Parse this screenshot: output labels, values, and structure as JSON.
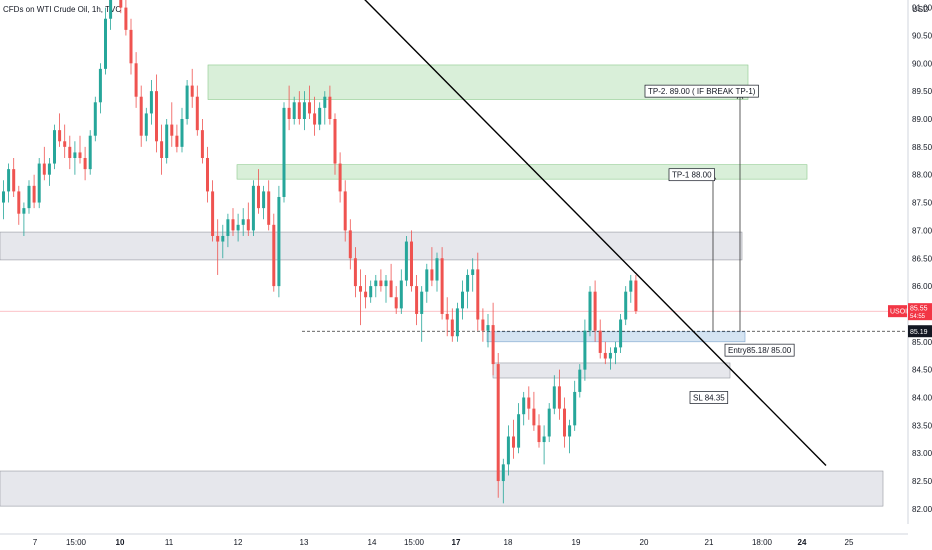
{
  "header": {
    "symbol_title": "CFDs on WTI Crude Oil, 1h, TVC"
  },
  "price_axis": {
    "currency": "USD"
  },
  "colors": {
    "up": "#26a69a",
    "down": "#ef5350",
    "last_price": "#f23645",
    "zone_green": "#b9e2b9",
    "zone_gray": "#d1d4dc",
    "zone_blue": "#b3cde8"
  },
  "chart_data": {
    "type": "candlestick",
    "title": "CFDs on WTI Crude Oil, 1h, TVC",
    "y_axis": {
      "currency": "USD",
      "range": [
        81.65,
        91.75
      ],
      "ticks": [
        82.0,
        82.5,
        83.0,
        83.5,
        84.0,
        84.5,
        85.0,
        85.5,
        86.0,
        86.5,
        87.0,
        87.5,
        88.0,
        88.5,
        89.0,
        89.5,
        90.0,
        90.5,
        91.0
      ]
    },
    "x_axis": {
      "ticks": [
        {
          "label": "7",
          "bold": false
        },
        {
          "label": "15:00",
          "bold": false
        },
        {
          "label": "10",
          "bold": true
        },
        {
          "label": "11",
          "bold": false
        },
        {
          "label": "12",
          "bold": false
        },
        {
          "label": "13",
          "bold": false
        },
        {
          "label": "14",
          "bold": false
        },
        {
          "label": "15:00",
          "bold": false
        },
        {
          "label": "17",
          "bold": true
        },
        {
          "label": "18",
          "bold": false
        },
        {
          "label": "19",
          "bold": false
        },
        {
          "label": "20",
          "bold": false
        },
        {
          "label": "21",
          "bold": false
        },
        {
          "label": "18:00",
          "bold": false
        },
        {
          "label": "24",
          "bold": true
        },
        {
          "label": "25",
          "bold": false
        }
      ]
    },
    "price_labels": [
      {
        "symbol": "USOIL",
        "price": "85.55",
        "countdown": "54:55"
      },
      {
        "price": "85.19"
      }
    ],
    "last_price": 85.55,
    "entry_line": 85.19,
    "zones": [
      {
        "kind": "target",
        "low": 89.35,
        "high": 89.97,
        "label": "TP-2.   89.00 ( IF BREAK TP-1)"
      },
      {
        "kind": "target",
        "low": 87.92,
        "high": 88.18,
        "label": "TP-1 88.00"
      },
      {
        "kind": "resistance",
        "low": 86.47,
        "high": 86.97
      },
      {
        "kind": "entry",
        "low": 85.0,
        "high": 85.18,
        "label": "Entry85.18/ 85.00"
      },
      {
        "kind": "stop",
        "low": 84.35,
        "high": 84.62,
        "label": "SL 84.35"
      },
      {
        "kind": "support",
        "low": 82.05,
        "high": 82.68
      }
    ],
    "trendline": {
      "from_price": 92.1,
      "to_price": 82.78
    },
    "candles": [
      [
        87.5,
        87.9,
        87.2,
        87.7
      ],
      [
        87.7,
        88.2,
        87.5,
        88.1
      ],
      [
        88.1,
        88.3,
        87.6,
        87.7
      ],
      [
        87.7,
        87.8,
        87.1,
        87.3
      ],
      [
        87.3,
        87.5,
        86.9,
        87.4
      ],
      [
        87.4,
        87.9,
        87.3,
        87.8
      ],
      [
        87.8,
        88.0,
        87.4,
        87.5
      ],
      [
        87.5,
        88.3,
        87.4,
        88.2
      ],
      [
        88.2,
        88.5,
        87.9,
        88.0
      ],
      [
        88.0,
        88.3,
        87.8,
        88.2
      ],
      [
        88.2,
        88.9,
        88.1,
        88.8
      ],
      [
        88.8,
        89.1,
        88.5,
        88.6
      ],
      [
        88.6,
        88.9,
        88.3,
        88.5
      ],
      [
        88.5,
        88.7,
        88.1,
        88.3
      ],
      [
        88.3,
        88.6,
        88.0,
        88.4
      ],
      [
        88.4,
        88.7,
        88.2,
        88.3
      ],
      [
        88.3,
        88.5,
        87.9,
        88.1
      ],
      [
        88.1,
        88.8,
        88.0,
        88.7
      ],
      [
        88.7,
        89.4,
        88.6,
        89.3
      ],
      [
        89.3,
        90.0,
        89.1,
        89.9
      ],
      [
        89.9,
        91.0,
        89.8,
        90.8
      ],
      [
        90.8,
        92.0,
        90.6,
        91.8
      ],
      [
        91.9,
        92.2,
        91.3,
        91.5
      ],
      [
        91.5,
        91.7,
        90.9,
        91.0
      ],
      [
        91.0,
        91.3,
        90.5,
        90.6
      ],
      [
        90.6,
        90.8,
        89.8,
        90.0
      ],
      [
        90.0,
        90.2,
        89.2,
        89.4
      ],
      [
        89.4,
        89.6,
        88.5,
        88.7
      ],
      [
        88.7,
        89.2,
        88.6,
        89.1
      ],
      [
        89.1,
        89.7,
        88.9,
        89.5
      ],
      [
        89.5,
        89.8,
        88.4,
        88.6
      ],
      [
        88.6,
        88.9,
        88.0,
        88.3
      ],
      [
        88.3,
        89.0,
        88.2,
        88.9
      ],
      [
        88.9,
        89.3,
        88.5,
        88.7
      ],
      [
        88.7,
        88.9,
        88.4,
        88.5
      ],
      [
        88.5,
        89.2,
        88.4,
        89.0
      ],
      [
        89.0,
        89.7,
        88.9,
        89.6
      ],
      [
        89.6,
        89.9,
        89.2,
        89.4
      ],
      [
        89.4,
        89.6,
        88.7,
        88.8
      ],
      [
        88.8,
        89.0,
        88.2,
        88.3
      ],
      [
        88.3,
        88.5,
        87.5,
        87.7
      ],
      [
        87.7,
        87.9,
        86.8,
        86.9
      ],
      [
        86.9,
        87.2,
        86.2,
        86.8
      ],
      [
        86.8,
        87.1,
        86.5,
        86.9
      ],
      [
        86.9,
        87.3,
        86.7,
        87.2
      ],
      [
        87.2,
        87.4,
        86.9,
        87.0
      ],
      [
        87.0,
        87.3,
        86.8,
        87.1
      ],
      [
        87.1,
        87.4,
        86.9,
        87.2
      ],
      [
        87.2,
        87.5,
        86.9,
        87.0
      ],
      [
        87.0,
        87.9,
        86.9,
        87.8
      ],
      [
        87.8,
        88.1,
        87.3,
        87.4
      ],
      [
        87.4,
        87.8,
        87.2,
        87.7
      ],
      [
        87.7,
        87.9,
        87.0,
        87.1
      ],
      [
        87.1,
        87.3,
        85.9,
        86.0
      ],
      [
        86.0,
        87.8,
        85.8,
        87.6
      ],
      [
        87.6,
        89.3,
        87.5,
        89.2
      ],
      [
        89.2,
        89.6,
        88.8,
        89.0
      ],
      [
        89.0,
        89.4,
        88.9,
        89.3
      ],
      [
        89.3,
        89.5,
        88.9,
        89.0
      ],
      [
        89.0,
        89.5,
        88.8,
        89.3
      ],
      [
        89.3,
        89.6,
        89.0,
        89.1
      ],
      [
        89.1,
        89.4,
        88.7,
        88.9
      ],
      [
        88.9,
        89.3,
        88.8,
        89.2
      ],
      [
        89.2,
        89.5,
        88.9,
        89.4
      ],
      [
        89.4,
        89.6,
        88.9,
        89.0
      ],
      [
        89.0,
        89.1,
        88.0,
        88.2
      ],
      [
        88.2,
        88.4,
        87.5,
        87.7
      ],
      [
        87.7,
        87.9,
        86.8,
        87.0
      ],
      [
        87.0,
        87.2,
        86.3,
        86.5
      ],
      [
        86.5,
        86.7,
        85.8,
        86.0
      ],
      [
        86.0,
        86.3,
        85.3,
        85.9
      ],
      [
        85.9,
        86.2,
        85.6,
        85.8
      ],
      [
        85.8,
        86.1,
        85.7,
        86.0
      ],
      [
        86.0,
        86.2,
        85.8,
        86.1
      ],
      [
        86.1,
        86.3,
        85.9,
        86.0
      ],
      [
        86.0,
        86.2,
        85.7,
        86.1
      ],
      [
        86.1,
        86.4,
        85.9,
        85.8
      ],
      [
        85.8,
        86.0,
        85.5,
        85.6
      ],
      [
        85.6,
        86.3,
        85.5,
        86.1
      ],
      [
        86.1,
        86.9,
        86.0,
        86.8
      ],
      [
        86.8,
        87.0,
        85.9,
        86.0
      ],
      [
        86.0,
        86.2,
        85.3,
        85.5
      ],
      [
        85.5,
        86.0,
        85.0,
        85.9
      ],
      [
        85.9,
        86.4,
        85.7,
        86.3
      ],
      [
        86.3,
        86.7,
        86.0,
        86.1
      ],
      [
        86.1,
        86.6,
        85.9,
        86.5
      ],
      [
        86.5,
        86.7,
        85.4,
        85.5
      ],
      [
        85.5,
        85.8,
        85.1,
        85.4
      ],
      [
        85.4,
        85.6,
        85.0,
        85.1
      ],
      [
        85.1,
        85.7,
        85.0,
        85.6
      ],
      [
        85.6,
        86.1,
        85.4,
        85.9
      ],
      [
        85.9,
        86.3,
        85.6,
        86.2
      ],
      [
        86.2,
        86.5,
        85.9,
        86.3
      ],
      [
        86.3,
        86.6,
        85.2,
        85.4
      ],
      [
        85.4,
        85.6,
        85.0,
        85.2
      ],
      [
        85.2,
        85.5,
        84.9,
        85.3
      ],
      [
        85.3,
        85.7,
        84.4,
        84.6
      ],
      [
        84.6,
        84.8,
        82.2,
        82.5
      ],
      [
        82.5,
        82.9,
        82.1,
        82.8
      ],
      [
        82.8,
        83.5,
        82.6,
        83.3
      ],
      [
        83.3,
        83.6,
        82.9,
        83.1
      ],
      [
        83.1,
        83.9,
        83.0,
        83.7
      ],
      [
        83.7,
        84.1,
        83.5,
        84.0
      ],
      [
        84.0,
        84.2,
        83.6,
        83.8
      ],
      [
        83.8,
        84.1,
        83.4,
        83.5
      ],
      [
        83.5,
        83.7,
        83.1,
        83.2
      ],
      [
        83.2,
        83.5,
        82.8,
        83.3
      ],
      [
        83.3,
        83.9,
        83.2,
        83.8
      ],
      [
        83.8,
        84.4,
        83.7,
        84.2
      ],
      [
        84.2,
        84.5,
        83.6,
        83.8
      ],
      [
        83.8,
        84.0,
        83.1,
        83.3
      ],
      [
        83.3,
        83.6,
        83.0,
        83.5
      ],
      [
        83.5,
        84.3,
        83.4,
        84.1
      ],
      [
        84.1,
        84.6,
        84.0,
        84.5
      ],
      [
        84.5,
        85.4,
        84.3,
        85.2
      ],
      [
        85.2,
        86.0,
        85.1,
        85.9
      ],
      [
        85.9,
        86.1,
        85.0,
        85.2
      ],
      [
        85.2,
        85.4,
        84.7,
        84.8
      ],
      [
        84.8,
        85.0,
        84.6,
        84.7
      ],
      [
        84.7,
        84.9,
        84.5,
        84.8
      ],
      [
        84.8,
        85.0,
        84.6,
        84.9
      ],
      [
        84.9,
        85.5,
        84.8,
        85.4
      ],
      [
        85.4,
        86.0,
        85.3,
        85.9
      ],
      [
        85.9,
        86.2,
        85.7,
        86.1
      ],
      [
        86.1,
        86.2,
        85.5,
        85.55
      ]
    ]
  }
}
